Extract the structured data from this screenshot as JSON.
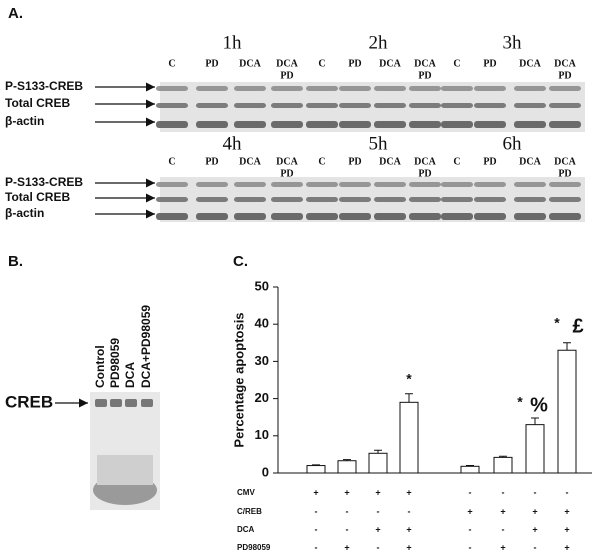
{
  "panels": [
    "A.",
    "B.",
    "C."
  ],
  "blots": {
    "rows": [
      "P-S133-CREB",
      "Total CREB",
      "β-actin"
    ],
    "lanes": [
      [
        "C"
      ],
      [
        "PD"
      ],
      [
        "DCA"
      ],
      [
        "DCA",
        "PD"
      ]
    ],
    "groups": [
      [
        "1h",
        "2h",
        "3h"
      ],
      [
        "4h",
        "5h",
        "6h"
      ]
    ]
  },
  "emsa": {
    "label": "CREB",
    "lanes": [
      "Control",
      "PD98059",
      "DCA",
      "DCA+PD98059"
    ]
  },
  "chart_data": {
    "type": "bar",
    "ylabel": "Percentage apoptosis",
    "values": [
      2,
      3.3,
      5.3,
      19,
      1.8,
      4.2,
      13,
      33
    ],
    "errors": [
      0.2,
      0.3,
      0.8,
      2.3,
      0.2,
      0.3,
      1.8,
      2
    ],
    "color": "#ffffff",
    "ylim": [
      0,
      50
    ],
    "yticks": [
      0,
      10,
      20,
      30,
      40,
      50
    ],
    "annotations": [
      "*",
      "*",
      "%",
      "*",
      "£"
    ],
    "conditions": [
      {
        "name": "CMV",
        "signs": [
          "+",
          "+",
          "+",
          "+",
          "-",
          "-",
          "-",
          "-"
        ]
      },
      {
        "name": "C/REB",
        "signs": [
          "-",
          "-",
          "-",
          "-",
          "+",
          "+",
          "+",
          "+"
        ]
      },
      {
        "name": "DCA",
        "signs": [
          "-",
          "-",
          "+",
          "+",
          "-",
          "-",
          "+",
          "+"
        ]
      },
      {
        "name": "PD98059",
        "signs": [
          "-",
          "+",
          "-",
          "+",
          "-",
          "+",
          "-",
          "+"
        ]
      }
    ]
  }
}
